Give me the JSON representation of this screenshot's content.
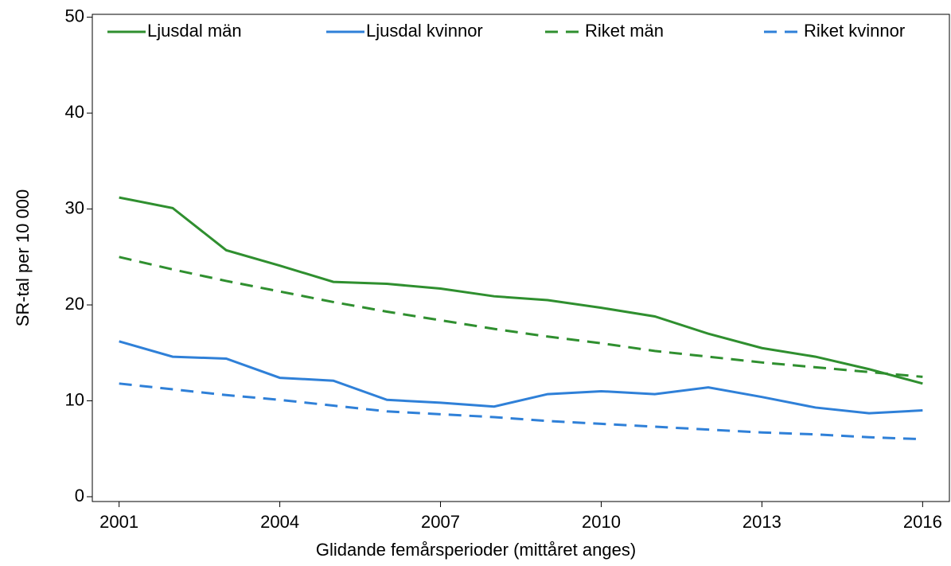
{
  "chart_data": {
    "type": "line",
    "x_label": "Glidande femårsperioder (mittåret anges)",
    "y_label": "SR-tal per 10 000",
    "x": [
      2001,
      2002,
      2003,
      2004,
      2005,
      2006,
      2007,
      2008,
      2009,
      2010,
      2011,
      2012,
      2013,
      2014,
      2015,
      2016
    ],
    "series": [
      {
        "name": "Ljusdal män",
        "color": "#2f8f2f",
        "style": "solid",
        "values": [
          31.2,
          30.1,
          25.7,
          24.1,
          22.4,
          22.2,
          21.7,
          20.9,
          20.5,
          19.7,
          18.8,
          17.0,
          15.5,
          14.6,
          13.3,
          11.8
        ]
      },
      {
        "name": "Ljusdal kvinnor",
        "color": "#2f80d8",
        "style": "solid",
        "values": [
          16.2,
          14.6,
          14.4,
          12.4,
          12.1,
          10.1,
          9.8,
          9.4,
          10.7,
          11.0,
          10.7,
          11.4,
          10.4,
          9.3,
          8.7,
          9.0
        ]
      },
      {
        "name": "Riket män",
        "color": "#2f8f2f",
        "style": "dashed",
        "values": [
          25.0,
          23.7,
          22.5,
          21.4,
          20.3,
          19.3,
          18.4,
          17.5,
          16.7,
          16.0,
          15.2,
          14.6,
          14.0,
          13.5,
          13.0,
          12.5
        ]
      },
      {
        "name": "Riket kvinnor",
        "color": "#2f80d8",
        "style": "dashed",
        "values": [
          11.8,
          11.2,
          10.6,
          10.1,
          9.5,
          8.9,
          8.6,
          8.3,
          7.9,
          7.6,
          7.3,
          7.0,
          6.7,
          6.5,
          6.2,
          6.0
        ]
      }
    ],
    "xlim": [
      2000.5,
      2016.5
    ],
    "xticks": [
      2001,
      2004,
      2007,
      2010,
      2013,
      2016
    ],
    "ylim": [
      -0.5,
      50.3
    ],
    "yticks": [
      0,
      10,
      20,
      30,
      40,
      50
    ],
    "grid": false,
    "legend": "top"
  }
}
